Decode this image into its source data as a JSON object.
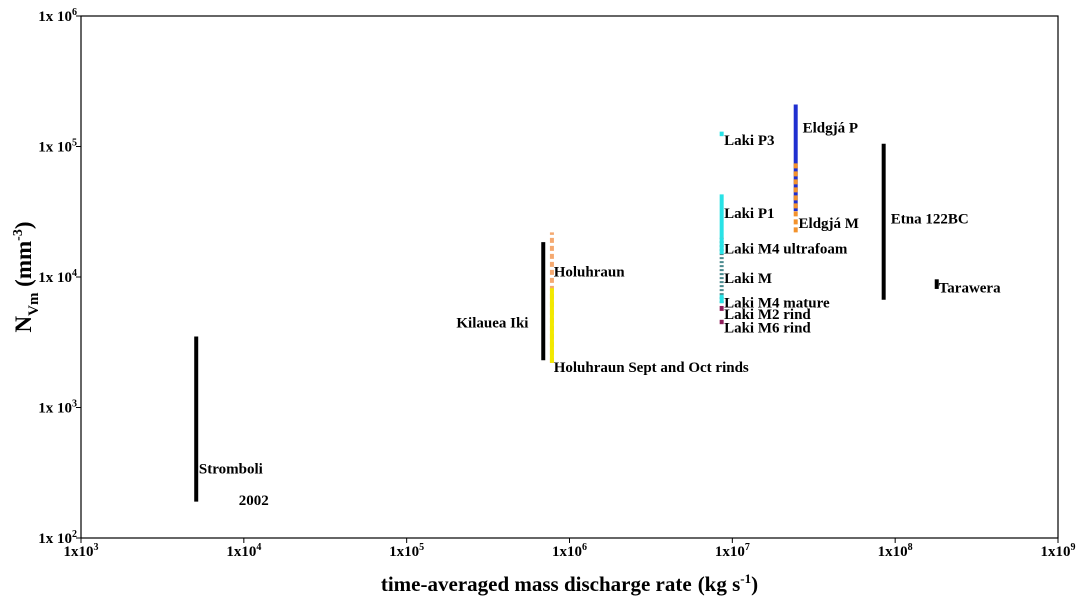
{
  "chart_data": {
    "type": "range",
    "x_scale": "log",
    "y_scale": "log",
    "xlim": [
      1000,
      1000000000
    ],
    "ylim": [
      100,
      1000000
    ],
    "grid": false,
    "legend": "none",
    "x_ticks": [
      {
        "value": 1000,
        "mant": "1x10",
        "exp": "3"
      },
      {
        "value": 10000,
        "mant": "1x10",
        "exp": "4"
      },
      {
        "value": 100000,
        "mant": "1x10",
        "exp": "5"
      },
      {
        "value": 1000000,
        "mant": "1x10",
        "exp": "6"
      },
      {
        "value": 10000000,
        "mant": "1x10",
        "exp": "7"
      },
      {
        "value": 100000000,
        "mant": "1x10",
        "exp": "8"
      },
      {
        "value": 1000000000,
        "mant": "1x10",
        "exp": "9"
      }
    ],
    "y_ticks": [
      {
        "value": 100,
        "mant": "1x 10",
        "exp": "2"
      },
      {
        "value": 1000,
        "mant": "1x 10",
        "exp": "3"
      },
      {
        "value": 10000,
        "mant": "1x 10",
        "exp": "4"
      },
      {
        "value": 100000,
        "mant": "1x 10",
        "exp": "5"
      },
      {
        "value": 1000000,
        "mant": "1x 10",
        "exp": "6"
      }
    ],
    "x_label": {
      "main": "time-averaged mass discharge rate",
      "unit_open": "(kg s",
      "unit_exp": "-1",
      "unit_close": ")"
    },
    "y_label": {
      "n": "N",
      "sub": "Vm",
      "unit_open": " (mm",
      "unit_exp": "-3",
      "unit_close": ")"
    },
    "ranges": [
      {
        "x": 5100,
        "y_low": 190,
        "y_high": 3500,
        "color": "#000000",
        "style": "solid"
      },
      {
        "x": 690000,
        "y_low": 2300,
        "y_high": 18500,
        "color": "#000000",
        "style": "solid"
      },
      {
        "x": 780000,
        "y_low": 2200,
        "y_high": 22000,
        "color": "#f5a970",
        "style": "dashed"
      },
      {
        "x": 780000,
        "y_low": 2200,
        "y_high": 8200,
        "color": "#f2e900",
        "style": "solid"
      },
      {
        "x": 8600000,
        "y_low": 120000,
        "y_high": 130000,
        "color": "#29e2e6",
        "style": "solid"
      },
      {
        "x": 8600000,
        "y_low": 20000,
        "y_high": 43000,
        "color": "#29e2e6",
        "style": "solid"
      },
      {
        "x": 8600000,
        "y_low": 6300,
        "y_high": 20000,
        "color": "#4a8a8e",
        "style": "dotted"
      },
      {
        "x": 8600000,
        "y_low": 15000,
        "y_high": 20000,
        "color": "#29e2e6",
        "style": "solid"
      },
      {
        "x": 8600000,
        "y_low": 6300,
        "y_high": 7300,
        "color": "#29e2e6",
        "style": "solid"
      },
      {
        "x": 8600000,
        "y_low": 5500,
        "y_high": 6000,
        "color": "#8e1f5a",
        "style": "solid"
      },
      {
        "x": 8600000,
        "y_low": 4350,
        "y_high": 4700,
        "color": "#8e1f5a",
        "style": "solid"
      },
      {
        "x": 24500000,
        "y_low": 32000,
        "y_high": 210000,
        "color": "#1f2fd0",
        "style": "solid"
      },
      {
        "x": 24500000,
        "y_low": 22000,
        "y_high": 78000,
        "color": "#f3922b",
        "style": "dashed"
      },
      {
        "x": 85000000,
        "y_low": 6700,
        "y_high": 105000,
        "color": "#000000",
        "style": "solid"
      },
      {
        "x": 180000000,
        "y_low": 8100,
        "y_high": 9600,
        "color": "#000000",
        "style": "solid"
      }
    ],
    "labels": [
      {
        "text": "Stromboli",
        "x": 5300,
        "y": 340,
        "anchor": "start"
      },
      {
        "text": "2002",
        "x": 11500,
        "y": 195,
        "anchor": "middle"
      },
      {
        "text": "Kilauea Iki",
        "x": 560000,
        "y": 4500,
        "anchor": "end"
      },
      {
        "text": "Holuhraun",
        "x": 800000,
        "y": 11000,
        "anchor": "start"
      },
      {
        "text": "Holuhraun Sept and Oct rinds",
        "x": 800000,
        "y": 2050,
        "anchor": "start"
      },
      {
        "text": "Laki P3",
        "x": 8900000,
        "y": 112000,
        "anchor": "start"
      },
      {
        "text": "Laki P1",
        "x": 8900000,
        "y": 31000,
        "anchor": "start"
      },
      {
        "text": "Laki M4 ultrafoam",
        "x": 8900000,
        "y": 16500,
        "anchor": "start"
      },
      {
        "text": "Laki M",
        "x": 8900000,
        "y": 9800,
        "anchor": "start"
      },
      {
        "text": "Laki M4 mature",
        "x": 8900000,
        "y": 6400,
        "anchor": "start"
      },
      {
        "text": "Laki M2 rind",
        "x": 8900000,
        "y": 5200,
        "anchor": "start"
      },
      {
        "text": "Laki M6 rind",
        "x": 8900000,
        "y": 4100,
        "anchor": "start"
      },
      {
        "text": "Eldgjá P",
        "x": 27000000,
        "y": 140000,
        "anchor": "start"
      },
      {
        "text": "Eldgjá M",
        "x": 25500000,
        "y": 26000,
        "anchor": "start"
      },
      {
        "text": "Etna 122BC",
        "x": 94000000,
        "y": 28000,
        "anchor": "start"
      },
      {
        "text": "Tarawera",
        "x": 185000000,
        "y": 8300,
        "anchor": "start"
      }
    ]
  }
}
